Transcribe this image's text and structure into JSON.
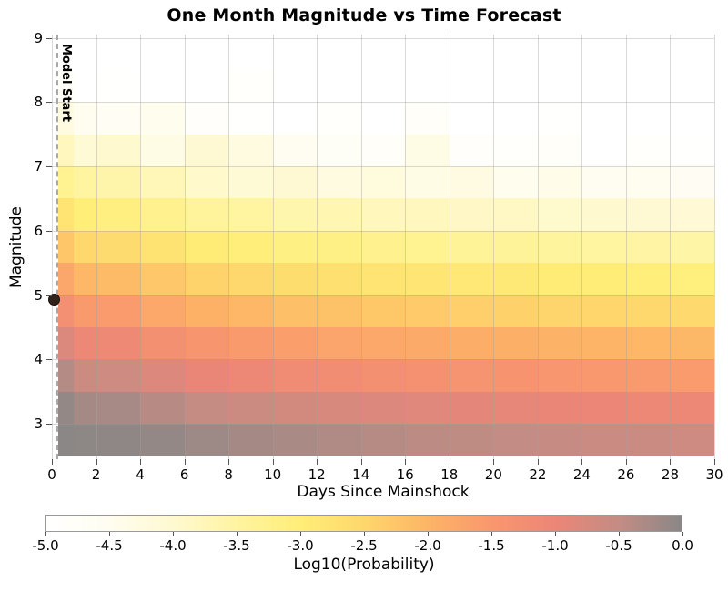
{
  "title": "One Month Magnitude vs Time Forecast",
  "chart_data": {
    "type": "heatmap",
    "title": "One Month Magnitude vs Time Forecast",
    "xlabel": "Days Since Mainshock",
    "ylabel": "Magnitude",
    "colorbar_label": "Log10(Probability)",
    "xlim": [
      0,
      30
    ],
    "ylim": [
      2.45,
      9.05
    ],
    "grid": true,
    "x_ticks": [
      0,
      2,
      4,
      6,
      8,
      10,
      12,
      14,
      16,
      18,
      20,
      22,
      24,
      26,
      28,
      30
    ],
    "x_tick_labels": [
      "0",
      "2",
      "4",
      "6",
      "8",
      "10",
      "12",
      "14",
      "16",
      "18",
      "20",
      "22",
      "24",
      "26",
      "28",
      "30"
    ],
    "y_ticks": [
      3,
      4,
      5,
      6,
      7,
      8,
      9
    ],
    "y_tick_labels": [
      "3",
      "4",
      "5",
      "6",
      "7",
      "8",
      "9"
    ],
    "colorbar_range": [
      -5,
      0
    ],
    "colorbar_ticks": [
      -5.0,
      -4.5,
      -4.0,
      -3.5,
      -3.0,
      -2.5,
      -2.0,
      -1.5,
      -1.0,
      -0.5,
      0.0
    ],
    "colorbar_tick_labels": [
      "-5.0",
      "-4.5",
      "-4.0",
      "-3.5",
      "-3.0",
      "-2.5",
      "-2.0",
      "-1.5",
      "-1.0",
      "-0.5",
      "0.0"
    ],
    "colormap_stops": [
      {
        "value": -5.0,
        "color": "#ffffff"
      },
      {
        "value": -4.5,
        "color": "#fffdf0"
      },
      {
        "value": -4.0,
        "color": "#fff9d0"
      },
      {
        "value": -3.5,
        "color": "#fff4a0"
      },
      {
        "value": -3.0,
        "color": "#ffee78"
      },
      {
        "value": -2.5,
        "color": "#fed76c"
      },
      {
        "value": -2.0,
        "color": "#fdb566"
      },
      {
        "value": -1.5,
        "color": "#f9976e"
      },
      {
        "value": -1.0,
        "color": "#ec8677"
      },
      {
        "value": -0.5,
        "color": "#c48c84"
      },
      {
        "value": 0.0,
        "color": "#8a8786"
      }
    ],
    "time_bin_edges_days": [
      0.3,
      1,
      2,
      4,
      6,
      8,
      10,
      12,
      14,
      16,
      18,
      20,
      22,
      24,
      26,
      28,
      30
    ],
    "magnitude_bin_edges": [
      2.5,
      3.0,
      3.5,
      4.0,
      4.5,
      5.0,
      5.5,
      6.0,
      6.5,
      7.0,
      7.5,
      8.0,
      8.5,
      9.0
    ],
    "log10_probability_rows_bottom_to_top": [
      [
        -0.01,
        -0.03,
        -0.04,
        -0.09,
        -0.16,
        -0.22,
        -0.28,
        -0.33,
        -0.38,
        -0.42,
        -0.46,
        -0.49,
        -0.53,
        -0.56,
        -0.58,
        -0.61
      ],
      [
        -0.08,
        -0.23,
        -0.25,
        -0.39,
        -0.51,
        -0.6,
        -0.68,
        -0.74,
        -0.81,
        -0.85,
        -0.9,
        -0.94,
        -0.98,
        -1.01,
        -1.04,
        -1.07
      ],
      [
        -0.37,
        -0.6,
        -0.62,
        -0.81,
        -0.96,
        -1.06,
        -1.14,
        -1.21,
        -1.28,
        -1.33,
        -1.38,
        -1.42,
        -1.46,
        -1.5,
        -1.53,
        -1.56
      ],
      [
        -0.79,
        -1.06,
        -1.09,
        -1.29,
        -1.44,
        -1.55,
        -1.63,
        -1.71,
        -1.78,
        -1.82,
        -1.88,
        -1.91,
        -1.96,
        -1.99,
        -2.03,
        -2.05
      ],
      [
        -1.26,
        -1.55,
        -1.57,
        -1.78,
        -1.94,
        -2.03,
        -2.14,
        -2.19,
        -2.28,
        -2.31,
        -2.38,
        -2.41,
        -2.46,
        -2.49,
        -2.53,
        -2.55
      ],
      [
        -1.75,
        -2.03,
        -2.07,
        -2.27,
        -2.44,
        -2.52,
        -2.64,
        -2.69,
        -2.78,
        -2.81,
        -2.88,
        -2.9,
        -2.96,
        -2.98,
        -3.03,
        -3.06
      ],
      [
        -2.25,
        -2.52,
        -2.58,
        -2.76,
        -2.95,
        -3.02,
        -3.15,
        -3.18,
        -3.28,
        -3.3,
        -3.39,
        -3.41,
        -3.47,
        -3.5,
        -3.53,
        -3.56
      ],
      [
        -2.78,
        -3.0,
        -3.1,
        -3.26,
        -3.45,
        -3.5,
        -3.65,
        -3.68,
        -3.78,
        -3.8,
        -3.9,
        -3.88,
        -3.98,
        -4.0,
        -4.05,
        -4.08
      ],
      [
        -3.3,
        -3.5,
        -3.6,
        -3.75,
        -3.95,
        -4.1,
        -4.05,
        -4.25,
        -4.2,
        -4.35,
        -4.3,
        -4.45,
        -4.4,
        -4.55,
        -4.5,
        -4.6
      ],
      [
        -3.8,
        -4.1,
        -4.0,
        -4.35,
        -4.05,
        -4.25,
        -4.55,
        -4.7,
        -4.75,
        -4.35,
        -4.85,
        -4.9,
        -4.8,
        -5.0,
        -4.9,
        -4.95
      ],
      [
        -4.25,
        -4.5,
        -4.62,
        -4.45,
        -4.85,
        -4.95,
        -5.0,
        -4.9,
        -5.0,
        -4.75,
        -5.0,
        -5.0,
        -4.95,
        -5.0,
        -5.0,
        -5.0
      ],
      [
        -4.8,
        -5.0,
        -4.95,
        -5.0,
        -5.0,
        -4.9,
        -5.0,
        -5.0,
        -5.0,
        -5.0,
        -5.0,
        -5.0,
        -5.0,
        -5.0,
        -5.0,
        -5.0
      ],
      [
        -5.0,
        -5.0,
        -5.0,
        -5.0,
        -5.0,
        -5.0,
        -5.0,
        -5.0,
        -5.0,
        -5.0,
        -5.0,
        -5.0,
        -5.0,
        -5.0,
        -5.0,
        -5.0
      ]
    ],
    "annotations": {
      "model_start": {
        "label": "Model Start",
        "x_days": 0.2
      },
      "mainshock": {
        "x_days": 0.05,
        "magnitude": 4.95
      }
    }
  }
}
